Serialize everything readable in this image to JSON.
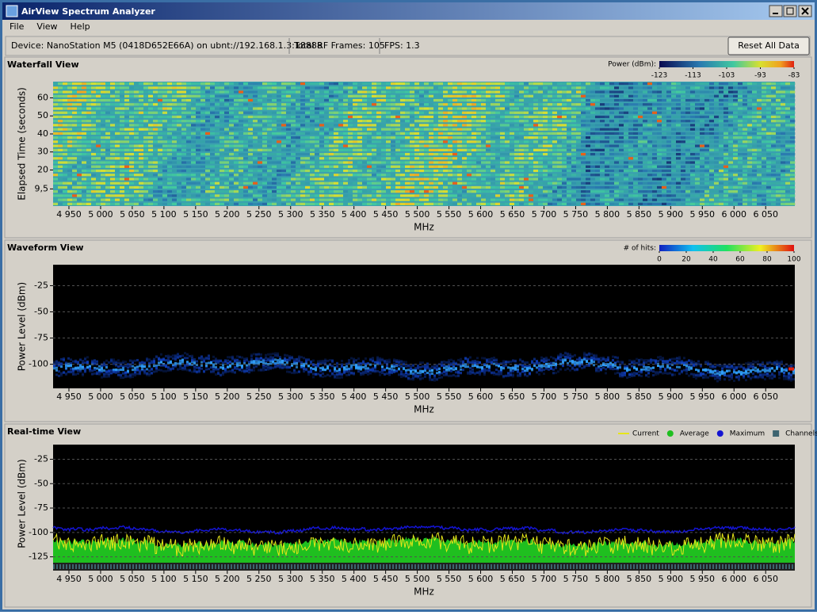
{
  "window": {
    "title": "AirView Spectrum Analyzer"
  },
  "menu": [
    "File",
    "View",
    "Help"
  ],
  "status": {
    "device": "Device: NanoStation M5 (0418D652E66A) on ubnt://192.168.1.3:18888",
    "frames": "Total RF Frames: 105",
    "fps": "FPS: 1.3",
    "reset": "Reset All Data"
  },
  "panels": [
    {
      "type": "heatmap",
      "title": "Waterfall View",
      "xlabel": "MHz",
      "ylabel": "Elapsed Time (seconds)",
      "xlim": [
        4925,
        6096
      ],
      "xticks": [
        {
          "value": 4950,
          "label": "4 950"
        },
        {
          "value": 5000,
          "label": "5 000"
        },
        {
          "value": 5050,
          "label": "5 050"
        },
        {
          "value": 5100,
          "label": "5 100"
        },
        {
          "value": 5150,
          "label": "5 150"
        },
        {
          "value": 5200,
          "label": "5 200"
        },
        {
          "value": 5250,
          "label": "5 250"
        },
        {
          "value": 5300,
          "label": "5 300"
        },
        {
          "value": 5350,
          "label": "5 350"
        },
        {
          "value": 5400,
          "label": "5 400"
        },
        {
          "value": 5450,
          "label": "5 450"
        },
        {
          "value": 5500,
          "label": "5 500"
        },
        {
          "value": 5550,
          "label": "5 550"
        },
        {
          "value": 5600,
          "label": "5 600"
        },
        {
          "value": 5650,
          "label": "5 650"
        },
        {
          "value": 5700,
          "label": "5 700"
        },
        {
          "value": 5750,
          "label": "5 750"
        },
        {
          "value": 5800,
          "label": "5 800"
        },
        {
          "value": 5850,
          "label": "5 850"
        },
        {
          "value": 5900,
          "label": "5 900"
        },
        {
          "value": 5950,
          "label": "5 950"
        },
        {
          "value": 6000,
          "label": "6 000"
        },
        {
          "value": 6050,
          "label": "6 050"
        }
      ],
      "ylim": [
        0,
        69
      ],
      "yticks": [
        {
          "value": 9.5,
          "label": "9,5"
        },
        20,
        30,
        40,
        50,
        60
      ],
      "colorbar": {
        "label": "Power (dBm):",
        "ticks": [
          -123,
          -113,
          -103,
          -93,
          -83
        ]
      }
    },
    {
      "type": "density",
      "title": "Waveform View",
      "xlabel": "MHz",
      "ylabel": "Power Level (dBm)",
      "xlim": [
        4925,
        6096
      ],
      "xticks": [
        {
          "value": 4950,
          "label": "4 950"
        },
        {
          "value": 5000,
          "label": "5 000"
        },
        {
          "value": 5050,
          "label": "5 050"
        },
        {
          "value": 5100,
          "label": "5 100"
        },
        {
          "value": 5150,
          "label": "5 150"
        },
        {
          "value": 5200,
          "label": "5 200"
        },
        {
          "value": 5250,
          "label": "5 250"
        },
        {
          "value": 5300,
          "label": "5 300"
        },
        {
          "value": 5350,
          "label": "5 350"
        },
        {
          "value": 5400,
          "label": "5 400"
        },
        {
          "value": 5450,
          "label": "5 450"
        },
        {
          "value": 5500,
          "label": "5 500"
        },
        {
          "value": 5550,
          "label": "5 550"
        },
        {
          "value": 5600,
          "label": "5 600"
        },
        {
          "value": 5650,
          "label": "5 650"
        },
        {
          "value": 5700,
          "label": "5 700"
        },
        {
          "value": 5750,
          "label": "5 750"
        },
        {
          "value": 5800,
          "label": "5 800"
        },
        {
          "value": 5850,
          "label": "5 850"
        },
        {
          "value": 5900,
          "label": "5 900"
        },
        {
          "value": 5950,
          "label": "5 950"
        },
        {
          "value": 6000,
          "label": "6 000"
        },
        {
          "value": 6050,
          "label": "6 050"
        }
      ],
      "ylim": [
        -123,
        -5
      ],
      "yticks": [
        -100,
        -75,
        -50,
        -25
      ],
      "grid": true,
      "colorbar": {
        "label": "# of hits:",
        "ticks": [
          0,
          20,
          40,
          60,
          80,
          100
        ]
      }
    },
    {
      "type": "spectrum",
      "title": "Real-time View",
      "xlabel": "MHz",
      "ylabel": "Power Level (dBm)",
      "xlim": [
        4925,
        6096
      ],
      "xticks": [
        {
          "value": 4950,
          "label": "4 950"
        },
        {
          "value": 5000,
          "label": "5 000"
        },
        {
          "value": 5050,
          "label": "5 050"
        },
        {
          "value": 5100,
          "label": "5 100"
        },
        {
          "value": 5150,
          "label": "5 150"
        },
        {
          "value": 5200,
          "label": "5 200"
        },
        {
          "value": 5250,
          "label": "5 250"
        },
        {
          "value": 5300,
          "label": "5 300"
        },
        {
          "value": 5350,
          "label": "5 350"
        },
        {
          "value": 5400,
          "label": "5 400"
        },
        {
          "value": 5450,
          "label": "5 450"
        },
        {
          "value": 5500,
          "label": "5 500"
        },
        {
          "value": 5550,
          "label": "5 550"
        },
        {
          "value": 5600,
          "label": "5 600"
        },
        {
          "value": 5650,
          "label": "5 650"
        },
        {
          "value": 5700,
          "label": "5 700"
        },
        {
          "value": 5750,
          "label": "5 750"
        },
        {
          "value": 5800,
          "label": "5 800"
        },
        {
          "value": 5850,
          "label": "5 850"
        },
        {
          "value": 5900,
          "label": "5 900"
        },
        {
          "value": 5950,
          "label": "5 950"
        },
        {
          "value": 6000,
          "label": "6 000"
        },
        {
          "value": 6050,
          "label": "6 050"
        }
      ],
      "ylim": [
        -131,
        -10
      ],
      "yticks": [
        -125,
        -100,
        -75,
        -50,
        -25
      ],
      "grid": true,
      "legend": [
        {
          "name": "Current",
          "color": "#e6e619"
        },
        {
          "name": "Average",
          "color": "#1fbf1f"
        },
        {
          "name": "Maximum",
          "color": "#1414d2"
        },
        {
          "name": "Channels",
          "color": "#3d6470"
        }
      ]
    }
  ]
}
